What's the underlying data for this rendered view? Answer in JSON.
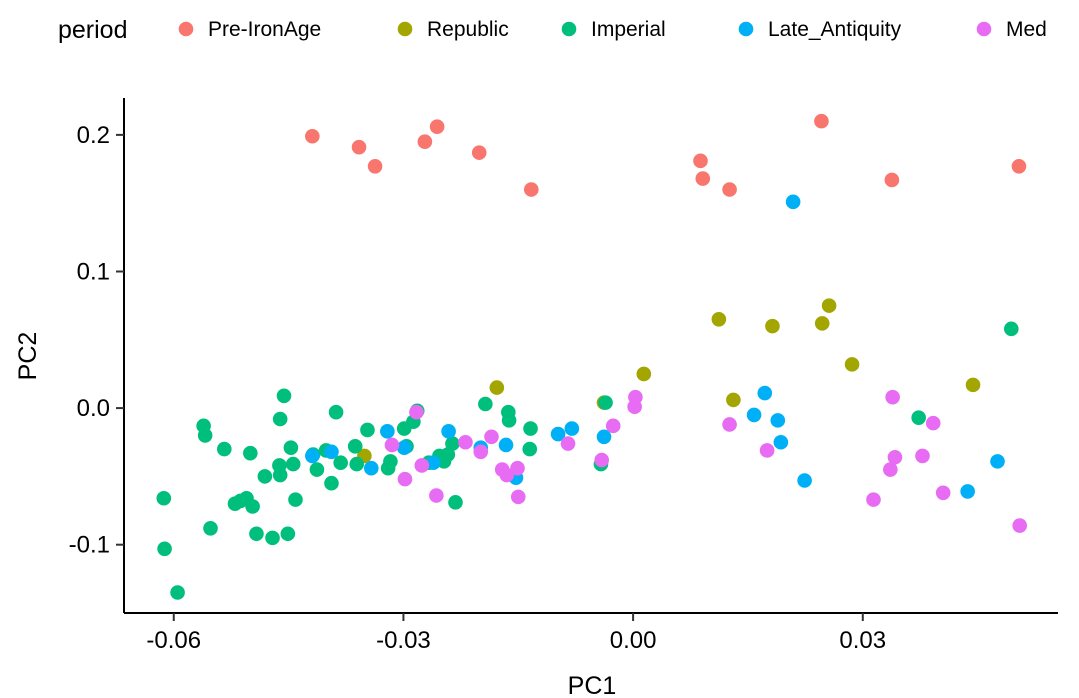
{
  "chart_data": {
    "type": "scatter",
    "xlabel": "PC1",
    "ylabel": "PC2",
    "xlim": [
      -0.0665,
      0.0555
    ],
    "ylim": [
      -0.15,
      0.227
    ],
    "xticks": [
      -0.06,
      -0.03,
      0.0,
      0.03
    ],
    "xtick_labels": [
      "-0.06",
      "-0.03",
      "0.00",
      "0.03"
    ],
    "yticks": [
      -0.1,
      0.0,
      0.1,
      0.2
    ],
    "ytick_labels": [
      "-0.1",
      "0.0",
      "0.1",
      "0.2"
    ],
    "grid": false,
    "legend": {
      "title": "period",
      "placement": "top",
      "entries": [
        "Pre-IronAge",
        "Republic",
        "Imperial",
        "Late_Antiquity",
        "Med"
      ]
    },
    "series": [
      {
        "name": "Pre-IronAge",
        "color": "#F8766D",
        "points": [
          [
            -0.0419,
            0.199
          ],
          [
            -0.0358,
            0.191
          ],
          [
            -0.0337,
            0.177
          ],
          [
            -0.0272,
            0.195
          ],
          [
            -0.0256,
            0.206
          ],
          [
            -0.0201,
            0.187
          ],
          [
            -0.0133,
            0.16
          ],
          [
            0.0088,
            0.181
          ],
          [
            0.0091,
            0.168
          ],
          [
            0.0126,
            0.16
          ],
          [
            0.0246,
            0.21
          ],
          [
            0.0338,
            0.167
          ],
          [
            0.0504,
            0.177
          ]
        ]
      },
      {
        "name": "Republic",
        "color": "#A3A500",
        "points": [
          [
            -0.0351,
            -0.035
          ],
          [
            -0.0178,
            0.015
          ],
          [
            -0.0038,
            0.004
          ],
          [
            0.0014,
            0.025
          ],
          [
            0.0112,
            0.065
          ],
          [
            0.0131,
            0.006
          ],
          [
            0.0182,
            0.06
          ],
          [
            0.0247,
            0.062
          ],
          [
            0.0256,
            0.075
          ],
          [
            0.0286,
            0.032
          ],
          [
            0.0444,
            0.017
          ]
        ]
      },
      {
        "name": "Imperial",
        "color": "#00BF7D",
        "points": [
          [
            -0.0613,
            -0.066
          ],
          [
            -0.0612,
            -0.103
          ],
          [
            -0.0595,
            -0.135
          ],
          [
            -0.0561,
            -0.013
          ],
          [
            -0.0559,
            -0.02
          ],
          [
            -0.0552,
            -0.088
          ],
          [
            -0.0534,
            -0.03
          ],
          [
            -0.052,
            -0.07
          ],
          [
            -0.0513,
            -0.068
          ],
          [
            -0.0505,
            -0.066
          ],
          [
            -0.05,
            -0.033
          ],
          [
            -0.0497,
            -0.072
          ],
          [
            -0.0492,
            -0.092
          ],
          [
            -0.0481,
            -0.05
          ],
          [
            -0.0471,
            -0.095
          ],
          [
            -0.0462,
            -0.042
          ],
          [
            -0.0461,
            -0.049
          ],
          [
            -0.0461,
            -0.008
          ],
          [
            -0.0456,
            0.009
          ],
          [
            -0.0451,
            -0.092
          ],
          [
            -0.0447,
            -0.029
          ],
          [
            -0.0444,
            -0.041
          ],
          [
            -0.0441,
            -0.067
          ],
          [
            -0.0418,
            -0.034
          ],
          [
            -0.0413,
            -0.045
          ],
          [
            -0.0401,
            -0.031
          ],
          [
            -0.0394,
            -0.055
          ],
          [
            -0.0388,
            -0.003
          ],
          [
            -0.0382,
            -0.04
          ],
          [
            -0.0363,
            -0.028
          ],
          [
            -0.0361,
            -0.041
          ],
          [
            -0.0347,
            -0.016
          ],
          [
            -0.032,
            -0.044
          ],
          [
            -0.0317,
            -0.039
          ],
          [
            -0.0299,
            -0.015
          ],
          [
            -0.0296,
            -0.028
          ],
          [
            -0.0287,
            -0.01
          ],
          [
            -0.0282,
            -0.002
          ],
          [
            -0.0267,
            -0.04
          ],
          [
            -0.0253,
            -0.035
          ],
          [
            -0.0247,
            -0.039
          ],
          [
            -0.0242,
            -0.034
          ],
          [
            -0.0236,
            -0.026
          ],
          [
            -0.0232,
            -0.069
          ],
          [
            -0.0193,
            0.003
          ],
          [
            -0.0163,
            -0.003
          ],
          [
            -0.0162,
            -0.009
          ],
          [
            -0.0135,
            -0.03
          ],
          [
            -0.0134,
            -0.015
          ],
          [
            -0.0042,
            -0.041
          ],
          [
            -0.0036,
            0.004
          ],
          [
            0.0373,
            -0.007
          ],
          [
            0.0494,
            0.058
          ]
        ]
      },
      {
        "name": "Late_Antiquity",
        "color": "#00B0F6",
        "points": [
          [
            -0.0419,
            -0.035
          ],
          [
            -0.0394,
            -0.032
          ],
          [
            -0.0342,
            -0.044
          ],
          [
            -0.0321,
            -0.017
          ],
          [
            -0.0299,
            -0.029
          ],
          [
            -0.0261,
            -0.04
          ],
          [
            -0.0241,
            -0.017
          ],
          [
            -0.0199,
            -0.029
          ],
          [
            -0.0166,
            -0.027
          ],
          [
            -0.0153,
            -0.051
          ],
          [
            -0.0098,
            -0.019
          ],
          [
            -0.008,
            -0.015
          ],
          [
            -0.0038,
            -0.021
          ],
          [
            0.0172,
            0.011
          ],
          [
            0.0158,
            -0.005
          ],
          [
            0.0189,
            -0.009
          ],
          [
            0.0193,
            -0.025
          ],
          [
            0.0209,
            0.151
          ],
          [
            0.0224,
            -0.053
          ],
          [
            0.0437,
            -0.061
          ],
          [
            0.0476,
            -0.039
          ]
        ]
      },
      {
        "name": "Med",
        "color": "#E76BF3",
        "points": [
          [
            -0.0315,
            -0.027
          ],
          [
            -0.0298,
            -0.052
          ],
          [
            -0.0283,
            -0.003
          ],
          [
            -0.0276,
            -0.042
          ],
          [
            -0.0257,
            -0.064
          ],
          [
            -0.0219,
            -0.025
          ],
          [
            -0.0199,
            -0.032
          ],
          [
            -0.0185,
            -0.021
          ],
          [
            -0.0171,
            -0.045
          ],
          [
            -0.0165,
            -0.049
          ],
          [
            -0.0151,
            -0.044
          ],
          [
            -0.015,
            -0.065
          ],
          [
            -0.0085,
            -0.026
          ],
          [
            -0.0041,
            -0.038
          ],
          [
            -0.0026,
            -0.013
          ],
          [
            0.0002,
            0.001
          ],
          [
            0.0003,
            0.008
          ],
          [
            0.0126,
            -0.012
          ],
          [
            0.0175,
            -0.031
          ],
          [
            0.0314,
            -0.067
          ],
          [
            0.0336,
            -0.045
          ],
          [
            0.0339,
            0.008
          ],
          [
            0.0342,
            -0.036
          ],
          [
            0.0378,
            -0.035
          ],
          [
            0.0392,
            -0.011
          ],
          [
            0.0405,
            -0.062
          ],
          [
            0.0505,
            -0.086
          ]
        ]
      }
    ]
  }
}
